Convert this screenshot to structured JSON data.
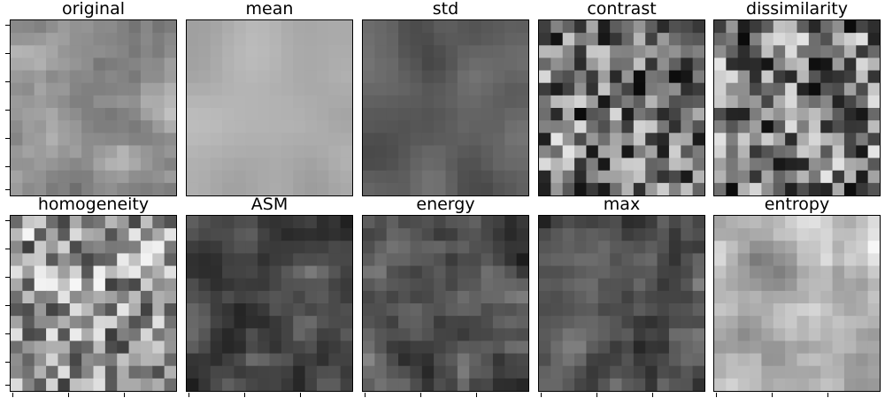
{
  "figure": {
    "panels": [
      {
        "key": "original",
        "title": "original"
      },
      {
        "key": "mean",
        "title": "mean"
      },
      {
        "key": "std",
        "title": "std"
      },
      {
        "key": "contrast",
        "title": "contrast"
      },
      {
        "key": "dissimilarity",
        "title": "dissimilarity"
      },
      {
        "key": "homogeneity",
        "title": "homogeneity"
      },
      {
        "key": "ASM",
        "title": "ASM"
      },
      {
        "key": "energy",
        "title": "energy"
      },
      {
        "key": "max",
        "title": "max"
      },
      {
        "key": "entropy",
        "title": "entropy"
      }
    ],
    "colormap": "gray",
    "tick_labels_visible": false
  }
}
